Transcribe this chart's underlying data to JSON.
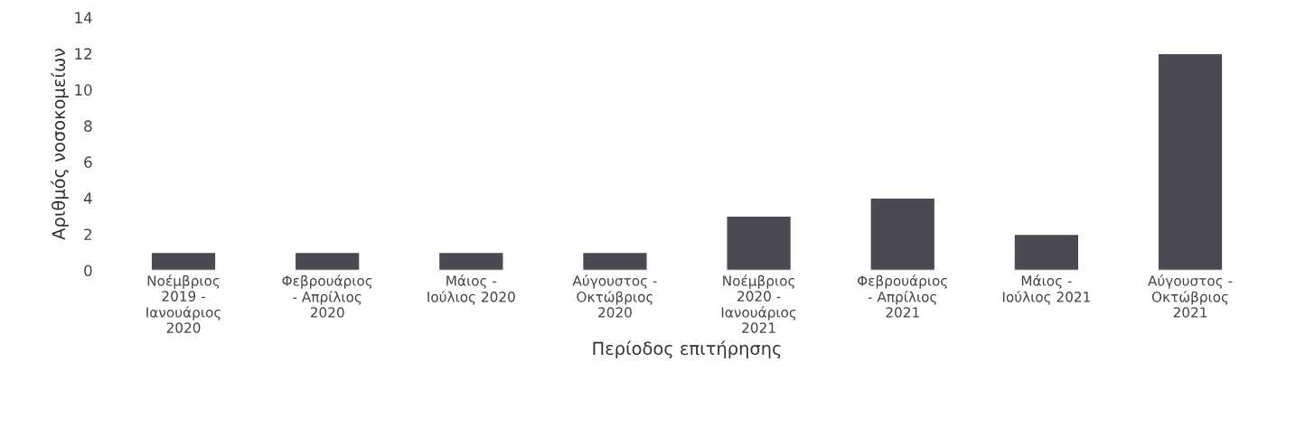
{
  "chart_data": {
    "type": "bar",
    "xlabel": "Περίοδος επιτήρησης",
    "ylabel": "Αριθμός νοσοκομείων",
    "categories": [
      "Νοέμβριος\n2019 -\nΙανουάριος\n2020",
      "Φεβρουάριος\n- Απρίλιος\n2020",
      "Μάιος -\nΙούλιος 2020",
      "Αύγουστος -\nΟκτώβριος\n2020",
      "Νοέμβριος\n2020 -\nΙανουάριος\n2021",
      "Φεβρουάριος\n- Απρίλιος\n2021",
      "Μάιος -\nΙούλιος 2021",
      "Αύγουστος -\nΟκτώβριος\n2021"
    ],
    "values": [
      1,
      1,
      1,
      1,
      3,
      4,
      2,
      12
    ],
    "color": "#4a4a52",
    "ylim": [
      0,
      14
    ],
    "yticks": [
      0,
      2,
      4,
      6,
      8,
      10,
      12,
      14
    ],
    "grid": false
  }
}
